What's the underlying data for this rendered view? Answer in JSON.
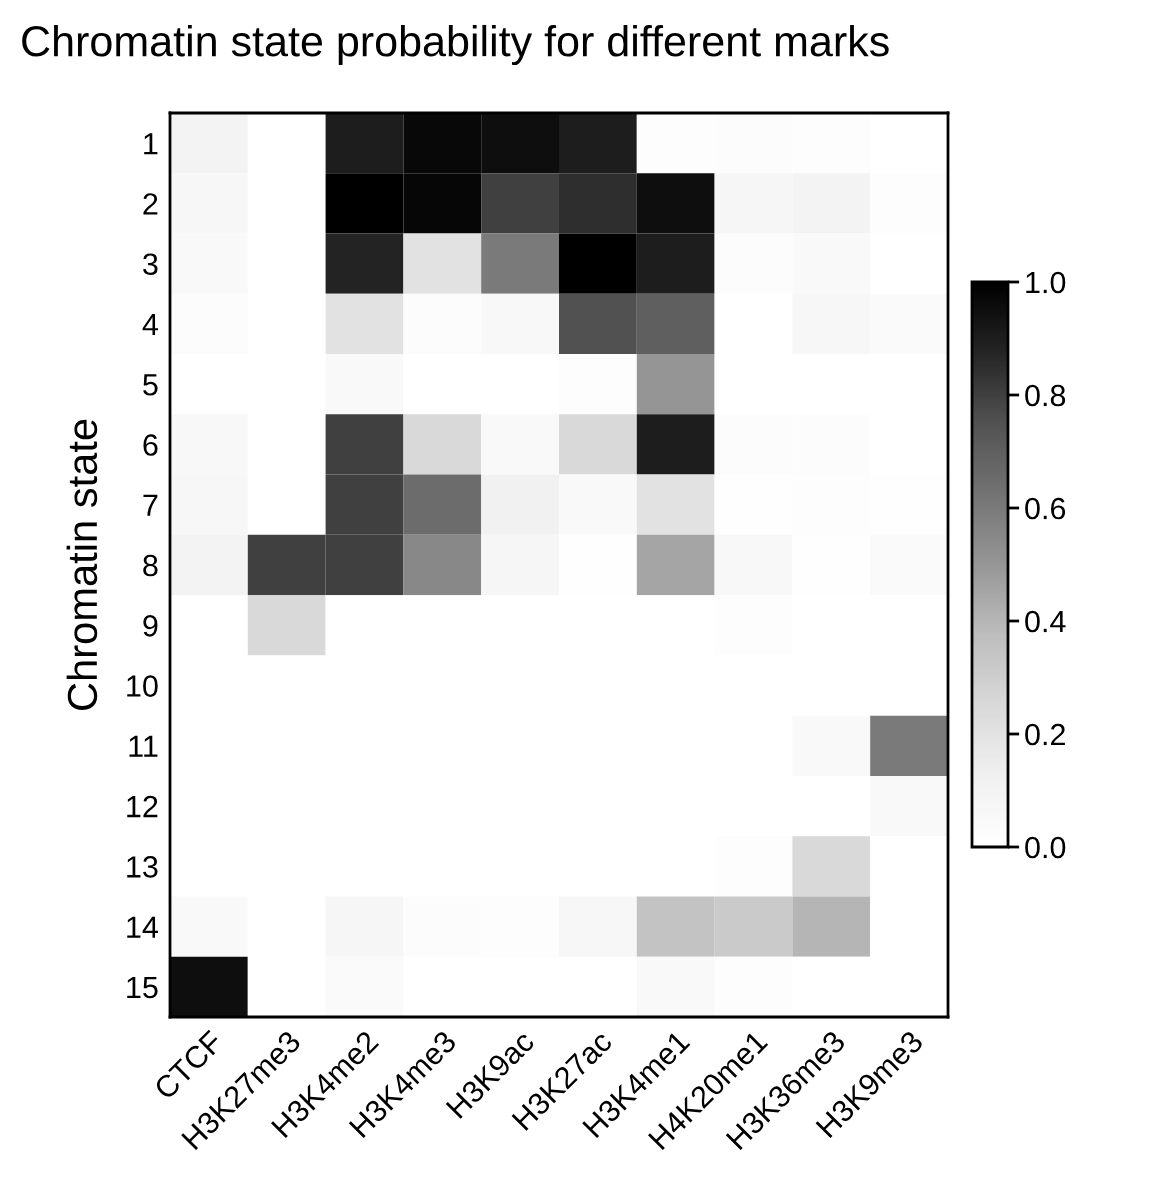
{
  "chart_data": {
    "type": "heatmap",
    "title": "Chromatin state probability for different marks",
    "ylabel": "Chromatin state",
    "categories": [
      "CTCF",
      "H3K27me3",
      "H3K4me2",
      "H3K4me3",
      "H3K9ac",
      "H3K27ac",
      "H3K4me1",
      "H4K20me1",
      "H3K36me3",
      "H3K9me3"
    ],
    "y_categories": [
      "1",
      "2",
      "3",
      "4",
      "5",
      "6",
      "7",
      "8",
      "9",
      "10",
      "11",
      "12",
      "13",
      "14",
      "15"
    ],
    "cells": [
      [
        0.1,
        0,
        0.9,
        0.97,
        0.95,
        0.9,
        0.02,
        0.03,
        0.02,
        0
      ],
      [
        0.07,
        0,
        1.0,
        0.98,
        0.8,
        0.85,
        0.95,
        0.08,
        0.1,
        0.02
      ],
      [
        0.05,
        0,
        0.88,
        0.2,
        0.6,
        1.0,
        0.9,
        0.03,
        0.05,
        0
      ],
      [
        0.03,
        0,
        0.2,
        0.03,
        0.06,
        0.75,
        0.7,
        0,
        0.07,
        0.04
      ],
      [
        0,
        0,
        0.05,
        0,
        0,
        0.02,
        0.5,
        0,
        0,
        0
      ],
      [
        0.06,
        0,
        0.8,
        0.25,
        0.05,
        0.25,
        0.9,
        0.03,
        0.03,
        0
      ],
      [
        0.07,
        0,
        0.8,
        0.65,
        0.12,
        0.05,
        0.2,
        0.01,
        0.02,
        0.01
      ],
      [
        0.1,
        0.8,
        0.8,
        0.55,
        0.08,
        0.01,
        0.45,
        0.06,
        0.01,
        0.04
      ],
      [
        0,
        0.25,
        0,
        0,
        0,
        0,
        0,
        0.02,
        0,
        0
      ],
      [
        0,
        0,
        0,
        0,
        0,
        0,
        0,
        0,
        0,
        0
      ],
      [
        0,
        0,
        0,
        0,
        0,
        0,
        0,
        0,
        0.05,
        0.6
      ],
      [
        0,
        0,
        0,
        0,
        0,
        0,
        0,
        0,
        0,
        0.05
      ],
      [
        0,
        0,
        0,
        0,
        0,
        0,
        0,
        0.02,
        0.25,
        0
      ],
      [
        0.05,
        0,
        0.08,
        0.03,
        0.02,
        0.07,
        0.35,
        0.32,
        0.4,
        0
      ],
      [
        0.95,
        0,
        0.04,
        0,
        0,
        0,
        0.05,
        0.02,
        0,
        0
      ]
    ],
    "clim": [
      0,
      1
    ],
    "cticks": [
      {
        "value": 0,
        "label": "0.0"
      },
      0.2,
      0.4,
      0.6,
      0.8,
      {
        "value": 1,
        "label": "1.0"
      }
    ],
    "grid": false
  }
}
